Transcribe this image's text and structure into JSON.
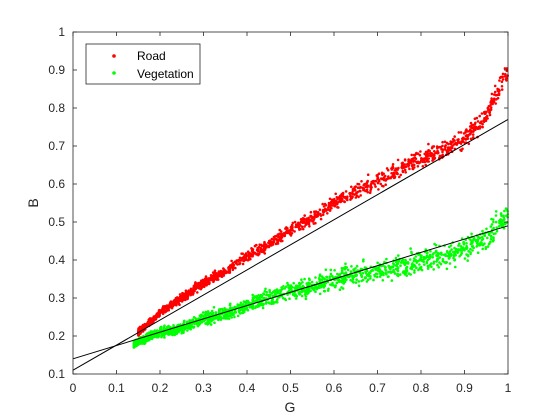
{
  "chart_data": {
    "type": "scatter",
    "xlabel": "G",
    "ylabel": "B",
    "xlim": [
      0,
      1
    ],
    "ylim": [
      0.1,
      1
    ],
    "x_ticks": [
      "0",
      "0.1",
      "0.2",
      "0.3",
      "0.4",
      "0.5",
      "0.6",
      "0.7",
      "0.8",
      "0.9",
      "1"
    ],
    "y_ticks": [
      "0.1",
      "0.2",
      "0.3",
      "0.4",
      "0.5",
      "0.6",
      "0.7",
      "0.8",
      "0.9",
      "1"
    ],
    "grid": false,
    "legend_position": "top-left",
    "series": [
      {
        "name": "Road",
        "color": "#ff0000",
        "marker": "dot",
        "trend_samples": [
          {
            "x": 0.15,
            "y": 0.21
          },
          {
            "x": 0.2,
            "y": 0.26
          },
          {
            "x": 0.25,
            "y": 0.3
          },
          {
            "x": 0.3,
            "y": 0.34
          },
          {
            "x": 0.35,
            "y": 0.37
          },
          {
            "x": 0.4,
            "y": 0.41
          },
          {
            "x": 0.45,
            "y": 0.44
          },
          {
            "x": 0.5,
            "y": 0.48
          },
          {
            "x": 0.55,
            "y": 0.51
          },
          {
            "x": 0.6,
            "y": 0.55
          },
          {
            "x": 0.65,
            "y": 0.58
          },
          {
            "x": 0.7,
            "y": 0.61
          },
          {
            "x": 0.75,
            "y": 0.64
          },
          {
            "x": 0.8,
            "y": 0.67
          },
          {
            "x": 0.85,
            "y": 0.69
          },
          {
            "x": 0.9,
            "y": 0.72
          },
          {
            "x": 0.95,
            "y": 0.78
          },
          {
            "x": 0.98,
            "y": 0.85
          },
          {
            "x": 1.0,
            "y": 0.9
          }
        ],
        "fit_line": {
          "x": [
            0,
            1
          ],
          "y": [
            0.11,
            0.77
          ]
        }
      },
      {
        "name": "Vegetation",
        "color": "#00ff00",
        "marker": "dot",
        "trend_samples": [
          {
            "x": 0.14,
            "y": 0.18
          },
          {
            "x": 0.2,
            "y": 0.21
          },
          {
            "x": 0.25,
            "y": 0.22
          },
          {
            "x": 0.3,
            "y": 0.245
          },
          {
            "x": 0.35,
            "y": 0.26
          },
          {
            "x": 0.4,
            "y": 0.28
          },
          {
            "x": 0.45,
            "y": 0.3
          },
          {
            "x": 0.5,
            "y": 0.32
          },
          {
            "x": 0.55,
            "y": 0.33
          },
          {
            "x": 0.6,
            "y": 0.35
          },
          {
            "x": 0.65,
            "y": 0.36
          },
          {
            "x": 0.7,
            "y": 0.37
          },
          {
            "x": 0.75,
            "y": 0.38
          },
          {
            "x": 0.8,
            "y": 0.4
          },
          {
            "x": 0.85,
            "y": 0.41
          },
          {
            "x": 0.9,
            "y": 0.43
          },
          {
            "x": 0.95,
            "y": 0.46
          },
          {
            "x": 1.0,
            "y": 0.52
          }
        ],
        "fit_line": {
          "x": [
            0,
            1
          ],
          "y": [
            0.14,
            0.49
          ]
        }
      }
    ]
  }
}
